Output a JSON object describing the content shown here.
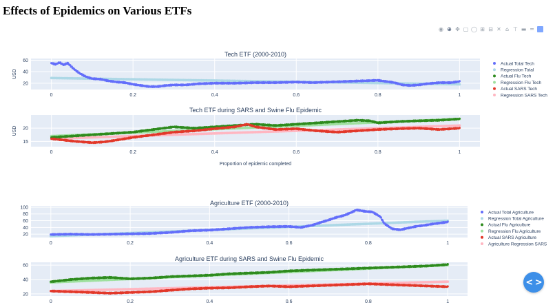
{
  "page": {
    "title": "Effects of Epidemics on Various ETFs"
  },
  "modebar": {
    "icons": [
      "camera-icon",
      "zoom-icon",
      "pan-icon",
      "box-select-icon",
      "lasso-icon",
      "zoom-in-icon",
      "zoom-out-icon",
      "autoscale-icon",
      "home-icon",
      "spike-lines-icon",
      "hover-closest-icon",
      "hover-compare-icon",
      "plotly-logo-icon"
    ],
    "glyphs": [
      "◉",
      "⊕",
      "✥",
      "▢",
      "◯",
      "⊞",
      "⊟",
      "✕",
      "⌂",
      "⊤",
      "▬",
      "═",
      ""
    ]
  },
  "fab": {
    "icon": "code-icon",
    "glyph": "< >"
  },
  "colors": {
    "plot_bg": "#e5ecf6",
    "grid": "#ffffff",
    "total_actual": "#636efa",
    "total_regression": "#add8e6",
    "flu_actual": "#2e8b1e",
    "flu_regression": "#9fe09f",
    "sars_actual": "#e2382a",
    "sars_regression": "#ffb6c1"
  },
  "chart_data": [
    {
      "type": "scatter",
      "title": "Tech ETF (2000-2010)",
      "xlabel": "",
      "ylabel": "USD",
      "xlim": [
        -0.05,
        1.05
      ],
      "ylim": [
        9,
        63
      ],
      "xticks": [
        "0",
        "0.2",
        "0.4",
        "0.6",
        "0.8",
        "1"
      ],
      "xtick_values": [
        0,
        0.2,
        0.4,
        0.6,
        0.8,
        1
      ],
      "yticks": [
        "20",
        "40",
        "60"
      ],
      "ytick_values": [
        20,
        40,
        60
      ],
      "series": [
        {
          "name": "Actual Total Tech",
          "kind": "actual",
          "color_key": "total_actual",
          "points": [
            [
              0,
              55
            ],
            [
              0.01,
              53
            ],
            [
              0.02,
              56
            ],
            [
              0.03,
              52
            ],
            [
              0.04,
              55
            ],
            [
              0.05,
              48
            ],
            [
              0.06,
              42
            ],
            [
              0.07,
              37
            ],
            [
              0.08,
              33
            ],
            [
              0.09,
              30
            ],
            [
              0.1,
              28
            ],
            [
              0.12,
              27
            ],
            [
              0.14,
              24
            ],
            [
              0.16,
              22
            ],
            [
              0.18,
              21
            ],
            [
              0.2,
              18
            ],
            [
              0.22,
              16
            ],
            [
              0.24,
              14
            ],
            [
              0.26,
              14
            ],
            [
              0.28,
              16
            ],
            [
              0.3,
              17
            ],
            [
              0.33,
              17
            ],
            [
              0.36,
              19
            ],
            [
              0.4,
              20
            ],
            [
              0.45,
              20
            ],
            [
              0.5,
              21
            ],
            [
              0.55,
              21
            ],
            [
              0.6,
              22
            ],
            [
              0.64,
              21
            ],
            [
              0.68,
              22
            ],
            [
              0.72,
              23
            ],
            [
              0.76,
              24
            ],
            [
              0.8,
              25
            ],
            [
              0.82,
              23
            ],
            [
              0.84,
              21
            ],
            [
              0.86,
              17
            ],
            [
              0.88,
              16
            ],
            [
              0.9,
              17
            ],
            [
              0.92,
              19
            ],
            [
              0.95,
              21
            ],
            [
              0.98,
              21
            ],
            [
              1,
              23
            ]
          ]
        },
        {
          "name": "Regression Total",
          "kind": "regression",
          "color_key": "total_regression",
          "points": [
            [
              0,
              29
            ],
            [
              1,
              18
            ]
          ]
        }
      ]
    },
    {
      "type": "scatter",
      "title": "Tech ETF during SARS and Swine Flu Epidemic",
      "xlabel": "Proportion of epidemic completed",
      "ylabel": "USD",
      "xlim": [
        -0.05,
        1.05
      ],
      "ylim": [
        13,
        25
      ],
      "xticks": [
        "0",
        "0.2",
        "0.4",
        "0.6",
        "0.8",
        "1"
      ],
      "xtick_values": [
        0,
        0.2,
        0.4,
        0.6,
        0.8,
        1
      ],
      "yticks": [
        "15",
        "20"
      ],
      "ytick_values": [
        15,
        20
      ],
      "series": [
        {
          "name": "Actual Flu Tech",
          "kind": "actual",
          "color_key": "flu_actual",
          "points": [
            [
              0,
              16.5
            ],
            [
              0.05,
              17
            ],
            [
              0.1,
              17.5
            ],
            [
              0.15,
              18
            ],
            [
              0.2,
              18.5
            ],
            [
              0.25,
              19.5
            ],
            [
              0.3,
              20.5
            ],
            [
              0.35,
              20
            ],
            [
              0.4,
              20.5
            ],
            [
              0.45,
              21
            ],
            [
              0.5,
              21.5
            ],
            [
              0.55,
              21
            ],
            [
              0.6,
              21.5
            ],
            [
              0.65,
              22
            ],
            [
              0.7,
              22.5
            ],
            [
              0.75,
              23
            ],
            [
              0.78,
              22.8
            ],
            [
              0.8,
              22
            ],
            [
              0.85,
              22.5
            ],
            [
              0.9,
              22.8
            ],
            [
              0.95,
              23
            ],
            [
              1,
              23.5
            ]
          ]
        },
        {
          "name": "Regression Flu Tech",
          "kind": "regression",
          "color_key": "flu_regression",
          "points": [
            [
              0,
              17
            ],
            [
              1,
              23.5
            ]
          ]
        },
        {
          "name": "Actual SARS Tech",
          "kind": "actual",
          "color_key": "sars_actual",
          "points": [
            [
              0,
              16
            ],
            [
              0.03,
              15.5
            ],
            [
              0.06,
              15
            ],
            [
              0.1,
              14.5
            ],
            [
              0.13,
              14.8
            ],
            [
              0.16,
              15.5
            ],
            [
              0.2,
              16.5
            ],
            [
              0.25,
              17.5
            ],
            [
              0.3,
              18.5
            ],
            [
              0.35,
              19
            ],
            [
              0.4,
              19.8
            ],
            [
              0.45,
              20.5
            ],
            [
              0.48,
              21.5
            ],
            [
              0.5,
              20.5
            ],
            [
              0.55,
              19.5
            ],
            [
              0.6,
              19.8
            ],
            [
              0.65,
              19
            ],
            [
              0.7,
              18.5
            ],
            [
              0.75,
              19
            ],
            [
              0.8,
              19.5
            ],
            [
              0.85,
              19.8
            ],
            [
              0.9,
              20
            ],
            [
              0.95,
              19.5
            ],
            [
              1,
              20
            ]
          ]
        },
        {
          "name": "Regression SARS Tech",
          "kind": "regression",
          "color_key": "sars_regression",
          "points": [
            [
              0,
              16
            ],
            [
              1,
              21
            ]
          ]
        }
      ]
    },
    {
      "type": "scatter",
      "title": "Agriculture ETF (2000-2010)",
      "xlabel": "",
      "ylabel": "",
      "xlim": [
        -0.05,
        1.05
      ],
      "ylim": [
        10,
        104
      ],
      "xticks": [
        "0",
        "0.2",
        "0.4",
        "0.6",
        "0.8",
        "1"
      ],
      "xtick_values": [
        0,
        0.2,
        0.4,
        0.6,
        0.8,
        1
      ],
      "yticks": [
        "20",
        "40",
        "60",
        "80",
        "100"
      ],
      "ytick_values": [
        20,
        40,
        60,
        80,
        100
      ],
      "series": [
        {
          "name": "Actual Total Agriculture",
          "kind": "actual",
          "color_key": "total_actual",
          "points": [
            [
              0,
              19
            ],
            [
              0.05,
              20
            ],
            [
              0.1,
              19
            ],
            [
              0.15,
              20
            ],
            [
              0.2,
              21
            ],
            [
              0.25,
              22
            ],
            [
              0.3,
              25
            ],
            [
              0.35,
              30
            ],
            [
              0.4,
              32
            ],
            [
              0.45,
              36
            ],
            [
              0.5,
              40
            ],
            [
              0.55,
              42
            ],
            [
              0.6,
              43
            ],
            [
              0.63,
              40
            ],
            [
              0.66,
              47
            ],
            [
              0.68,
              55
            ],
            [
              0.7,
              62
            ],
            [
              0.72,
              70
            ],
            [
              0.74,
              76
            ],
            [
              0.76,
              86
            ],
            [
              0.77,
              92
            ],
            [
              0.79,
              88
            ],
            [
              0.81,
              86
            ],
            [
              0.83,
              72
            ],
            [
              0.84,
              52
            ],
            [
              0.86,
              36
            ],
            [
              0.88,
              33
            ],
            [
              0.9,
              38
            ],
            [
              0.92,
              43
            ],
            [
              0.94,
              46
            ],
            [
              0.96,
              50
            ],
            [
              0.98,
              53
            ],
            [
              1,
              56
            ]
          ]
        },
        {
          "name": "Regression Total Agriculture",
          "kind": "regression",
          "color_key": "total_regression",
          "points": [
            [
              0,
              14
            ],
            [
              1,
              60
            ]
          ]
        }
      ]
    },
    {
      "type": "scatter",
      "title": "Agriculture ETF during SARS and Swine Flu Epidemic",
      "xlabel": "",
      "ylabel": "",
      "xlim": [
        -0.05,
        1.05
      ],
      "ylim": [
        17,
        64
      ],
      "xticks": [
        "0",
        "0.2",
        "0.4",
        "0.6",
        "0.8",
        "1"
      ],
      "xtick_values": [
        0,
        0.2,
        0.4,
        0.6,
        0.8,
        1
      ],
      "yticks": [
        "20",
        "40",
        "60"
      ],
      "ytick_values": [
        20,
        40,
        60
      ],
      "series": [
        {
          "name": "Actual Flu Agriculture",
          "kind": "actual",
          "color_key": "flu_actual",
          "points": [
            [
              0,
              37
            ],
            [
              0.05,
              40
            ],
            [
              0.1,
              42
            ],
            [
              0.15,
              43
            ],
            [
              0.2,
              41
            ],
            [
              0.25,
              42
            ],
            [
              0.3,
              44
            ],
            [
              0.35,
              45
            ],
            [
              0.4,
              46
            ],
            [
              0.45,
              48
            ],
            [
              0.5,
              49
            ],
            [
              0.55,
              50
            ],
            [
              0.6,
              52
            ],
            [
              0.65,
              53
            ],
            [
              0.7,
              54
            ],
            [
              0.75,
              55
            ],
            [
              0.8,
              56
            ],
            [
              0.85,
              57
            ],
            [
              0.9,
              58
            ],
            [
              0.95,
              59
            ],
            [
              1,
              61
            ]
          ]
        },
        {
          "name": "Regression Flu Agriculture",
          "kind": "regression",
          "color_key": "flu_regression",
          "points": [
            [
              0,
              36
            ],
            [
              1,
              60
            ]
          ]
        },
        {
          "name": "Actual SARS Agriculture",
          "kind": "actual",
          "color_key": "sars_actual",
          "points": [
            [
              0,
              24
            ],
            [
              0.05,
              23
            ],
            [
              0.1,
              22
            ],
            [
              0.15,
              21
            ],
            [
              0.2,
              22
            ],
            [
              0.25,
              23
            ],
            [
              0.3,
              25
            ],
            [
              0.35,
              27
            ],
            [
              0.4,
              28
            ],
            [
              0.45,
              28.5
            ],
            [
              0.5,
              30
            ],
            [
              0.55,
              31
            ],
            [
              0.6,
              30
            ],
            [
              0.65,
              31
            ],
            [
              0.7,
              32
            ],
            [
              0.75,
              33
            ],
            [
              0.8,
              34
            ],
            [
              0.85,
              33
            ],
            [
              0.9,
              32
            ],
            [
              0.95,
              31
            ],
            [
              1,
              30
            ]
          ]
        },
        {
          "name": "Agriculture Regression SARS",
          "kind": "regression",
          "color_key": "sars_regression",
          "points": [
            [
              0,
              24
            ],
            [
              1,
              37
            ]
          ]
        }
      ]
    }
  ]
}
